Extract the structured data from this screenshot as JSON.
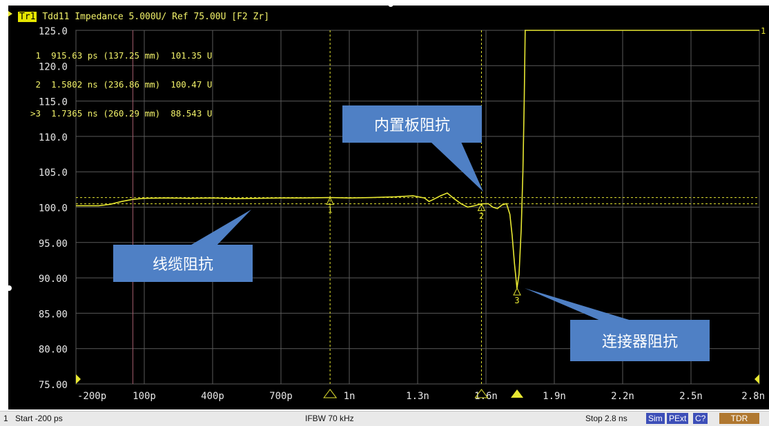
{
  "header": {
    "trace_badge": "Tr1",
    "title": "Tdd11 Impedance 5.000U/ Ref 75.00U [F2 Zr]"
  },
  "markers_readout": [
    {
      "text": " 1  915.63 ps (137.25 mm)  101.35 U"
    },
    {
      "text": " 2  1.5802 ns (236.86 mm)  100.47 U"
    },
    {
      "text": ">3  1.7365 ns (260.29 mm)  88.543 U"
    }
  ],
  "annotations": {
    "cable": "线缆阻抗",
    "board": "内置板阻抗",
    "connector": "连接器阻抗"
  },
  "status": {
    "channel": "1",
    "start": "Start -200 ps",
    "ifbw": "IFBW 70 kHz",
    "stop": "Stop 2.8 ns",
    "sim": "Sim",
    "pext": "PExt",
    "cal": "C?",
    "tdr": "TDR"
  },
  "chart_data": {
    "type": "line",
    "xlim": [
      -200,
      2800
    ],
    "ylim": [
      75,
      125
    ],
    "x_unit": "ps",
    "x_tick_values": [
      -200,
      100,
      400,
      700,
      1000,
      1300,
      1600,
      1900,
      2200,
      2500,
      2800
    ],
    "x_tick_labels": [
      "-200p",
      "100p",
      "400p",
      "700p",
      "1n",
      "1.3n",
      "1.6n",
      "1.9n",
      "2.2n",
      "2.5n",
      "2.8n"
    ],
    "y_tick_values": [
      125,
      120,
      115,
      110,
      105,
      100,
      95,
      90,
      85,
      80,
      75
    ],
    "y_tick_labels": [
      "125.0",
      "120.0",
      "115.0",
      "110.0",
      "105.0",
      "100.0",
      "95.00",
      "90.00",
      "85.00",
      "80.00",
      "75.00"
    ],
    "grid": true,
    "series": [
      {
        "color": "#e8e832",
        "points": [
          [
            -200,
            100.2
          ],
          [
            -100,
            100.2
          ],
          [
            -50,
            100.4
          ],
          [
            0,
            100.8
          ],
          [
            50,
            101.1
          ],
          [
            100,
            101.25
          ],
          [
            200,
            101.3
          ],
          [
            300,
            101.25
          ],
          [
            400,
            101.3
          ],
          [
            500,
            101.2
          ],
          [
            600,
            101.25
          ],
          [
            700,
            101.3
          ],
          [
            800,
            101.3
          ],
          [
            915,
            101.35
          ],
          [
            1000,
            101.3
          ],
          [
            1100,
            101.35
          ],
          [
            1200,
            101.45
          ],
          [
            1280,
            101.6
          ],
          [
            1330,
            101.3
          ],
          [
            1350,
            100.8
          ],
          [
            1370,
            101.1
          ],
          [
            1400,
            101.6
          ],
          [
            1430,
            102.0
          ],
          [
            1460,
            101.2
          ],
          [
            1490,
            100.5
          ],
          [
            1520,
            100.0
          ],
          [
            1550,
            100.2
          ],
          [
            1580,
            100.47
          ],
          [
            1610,
            100.5
          ],
          [
            1630,
            100.0
          ],
          [
            1650,
            99.8
          ],
          [
            1670,
            100.3
          ],
          [
            1690,
            100.5
          ],
          [
            1705,
            99.0
          ],
          [
            1715,
            96.0
          ],
          [
            1725,
            92.0
          ],
          [
            1736,
            88.543
          ],
          [
            1745,
            90.5
          ],
          [
            1755,
            97.0
          ],
          [
            1762,
            105.0
          ],
          [
            1768,
            115.0
          ],
          [
            1772,
            125.0
          ],
          [
            2800,
            125.0
          ]
        ]
      }
    ],
    "reference_lines_y": [
      101.35,
      100.47
    ],
    "markers": [
      {
        "id": "1",
        "x": 915.63,
        "y": 101.35
      },
      {
        "id": "2",
        "x": 1580.2,
        "y": 100.47
      },
      {
        "id": "3",
        "x": 1736.5,
        "y": 88.543
      }
    ],
    "stimulus_markers_x": [
      915.63,
      1580.2
    ],
    "active_marker_x": 1736.5,
    "secondary_vline_x": 50
  }
}
